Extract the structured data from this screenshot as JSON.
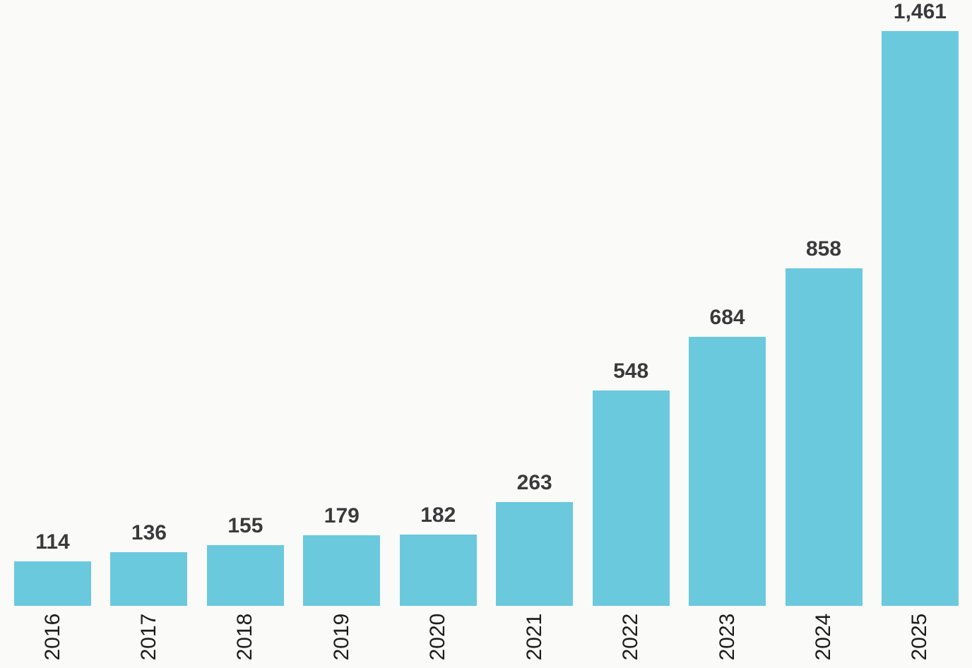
{
  "chart_data": {
    "type": "bar",
    "categories": [
      "2016",
      "2017",
      "2018",
      "2019",
      "2020",
      "2021",
      "2022",
      "2023",
      "2024",
      "2025"
    ],
    "values": [
      114,
      136,
      155,
      179,
      182,
      263,
      548,
      684,
      858,
      1461
    ],
    "value_labels": [
      "114",
      "136",
      "155",
      "179",
      "182",
      "263",
      "548",
      "684",
      "858",
      "1,461"
    ],
    "title": "",
    "xlabel": "",
    "ylabel": "",
    "ylim": [
      0,
      1461
    ],
    "grid": false,
    "legend": false,
    "orientation": "vertical",
    "x_tick_rotation": -90,
    "colors": {
      "bar": "#6bc9de",
      "value_label": "#3a3a3a",
      "year_label": "#1c1c1c",
      "background": "#fafaf9"
    }
  }
}
